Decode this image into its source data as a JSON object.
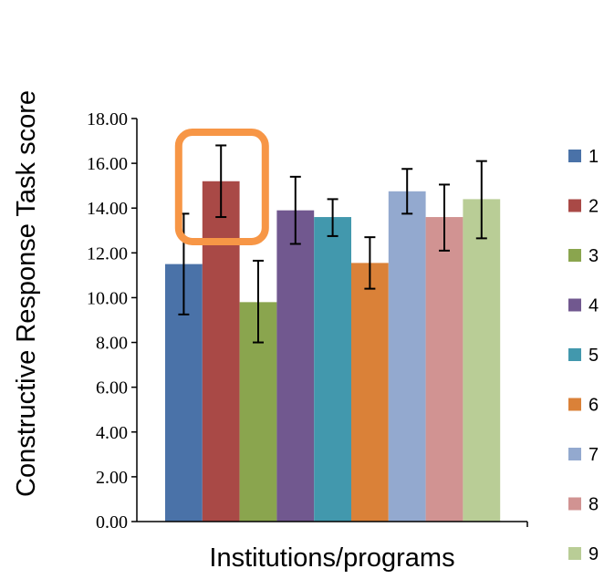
{
  "chart_data": {
    "type": "bar",
    "xlabel": "Institutions/programs",
    "ylabel": "Constructive Response Task score",
    "ylim": [
      0,
      18
    ],
    "yticks": [
      "0.00",
      "2.00",
      "4.00",
      "6.00",
      "8.00",
      "10.00",
      "12.00",
      "14.00",
      "16.00",
      "18.00"
    ],
    "categories": [
      "1",
      "2",
      "3",
      "4",
      "5",
      "6",
      "7",
      "8",
      "9"
    ],
    "values": [
      11.5,
      15.2,
      9.8,
      13.9,
      13.6,
      11.55,
      14.75,
      13.6,
      14.4
    ],
    "error_low": [
      9.25,
      13.6,
      8.0,
      12.4,
      12.75,
      10.4,
      13.75,
      12.1,
      12.65
    ],
    "error_high": [
      13.75,
      16.8,
      11.65,
      15.4,
      14.4,
      12.7,
      15.75,
      15.05,
      16.1
    ],
    "colors": [
      "#4a72a8",
      "#a94946",
      "#8aa54e",
      "#71588f",
      "#4298ad",
      "#da8138",
      "#93a9cf",
      "#d19392",
      "#b9cd96"
    ],
    "legend": {
      "placement": "right",
      "labels": [
        "1",
        "2",
        "3",
        "4",
        "5",
        "6",
        "7",
        "8",
        "9"
      ]
    },
    "highlight": {
      "category": "2",
      "color": "#f79646"
    },
    "grid": false
  }
}
